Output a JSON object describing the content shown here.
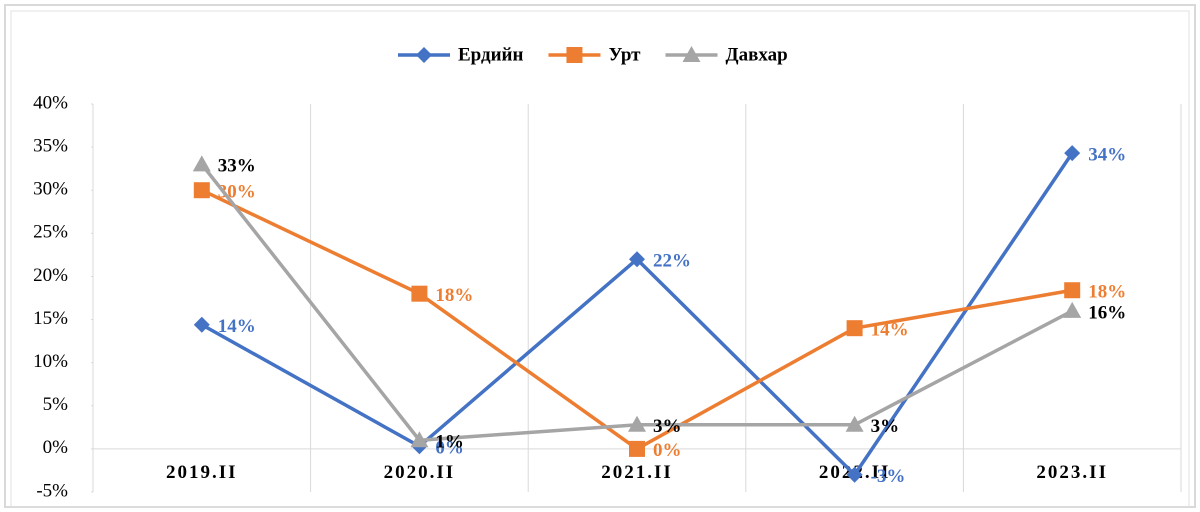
{
  "chart_data": {
    "type": "line",
    "categories": [
      "2019.II",
      "2020.II",
      "2021.II",
      "2022.II",
      "2023.II"
    ],
    "series": [
      {
        "name": "Ердийн",
        "color": "#4472c4",
        "label_color": "#4472c4",
        "marker": "diamond",
        "values": [
          14.4,
          0.3,
          22,
          -3,
          34.3
        ],
        "value_labels": [
          "14%",
          "0%",
          "22%",
          "-3%",
          "34%"
        ]
      },
      {
        "name": "Урт",
        "color": "#ed7d31",
        "label_color": "#ed7d31",
        "marker": "square",
        "values": [
          30,
          18,
          0,
          14,
          18.4
        ],
        "value_labels": [
          "30%",
          "18%",
          "0%",
          "14%",
          "18%"
        ]
      },
      {
        "name": "Давхар",
        "color": "#a5a5a5",
        "label_color": "#000000",
        "marker": "triangle",
        "values": [
          33,
          1,
          2.8,
          2.8,
          16
        ],
        "value_labels": [
          "33%",
          "1%",
          "3%",
          "3%",
          "16%"
        ]
      }
    ],
    "ylim": [
      -5,
      40
    ],
    "yticks": [
      {
        "value": -5,
        "label": "-5%"
      },
      {
        "value": 0,
        "label": "0%"
      },
      {
        "value": 5,
        "label": "5%"
      },
      {
        "value": 10,
        "label": "10%"
      },
      {
        "value": 15,
        "label": "15%"
      },
      {
        "value": 20,
        "label": "20%"
      },
      {
        "value": 25,
        "label": "25%"
      },
      {
        "value": 30,
        "label": "30%"
      },
      {
        "value": 35,
        "label": "35%"
      },
      {
        "value": 40,
        "label": "40%"
      }
    ],
    "grid": "vertical",
    "legend": "top"
  }
}
